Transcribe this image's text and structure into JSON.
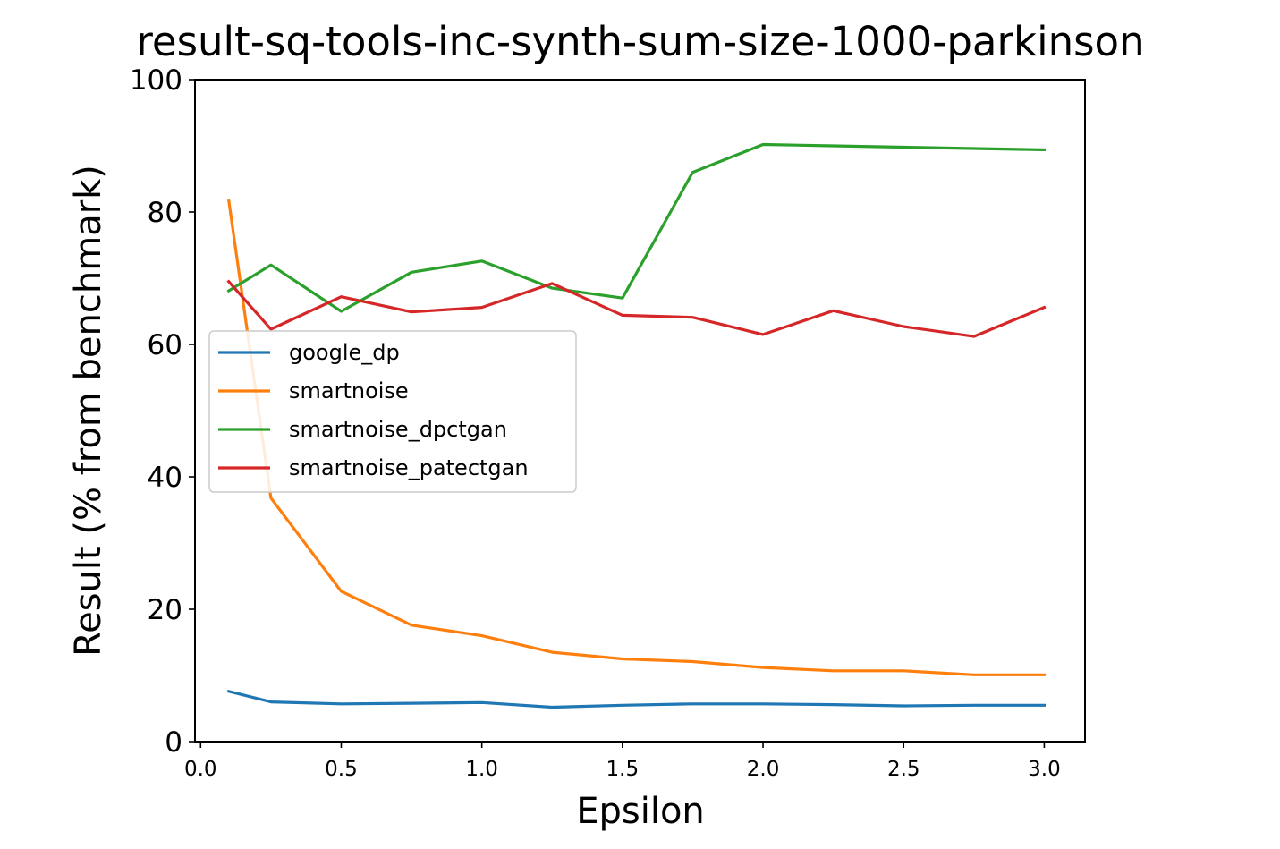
{
  "chart_data": {
    "type": "line",
    "title": "result-sq-tools-inc-synth-sum-size-1000-parkinson",
    "xlabel": "Epsilon",
    "ylabel": "Result (% from benchmark)",
    "xlim": [
      -0.02,
      3.145
    ],
    "ylim": [
      0,
      100
    ],
    "xticks": [
      0.0,
      0.5,
      1.0,
      1.5,
      2.0,
      2.5,
      3.0
    ],
    "xtick_labels": [
      "0.0",
      "0.5",
      "1.0",
      "1.5",
      "2.0",
      "2.5",
      "3.0"
    ],
    "yticks": [
      0,
      20,
      40,
      60,
      80,
      100
    ],
    "ytick_labels": [
      "0",
      "20",
      "40",
      "60",
      "80",
      "100"
    ],
    "grid": false,
    "legend_position": "center-left",
    "x": [
      0.1,
      0.25,
      0.5,
      0.75,
      1.0,
      1.25,
      1.5,
      1.75,
      2.0,
      2.25,
      2.5,
      2.75,
      3.0
    ],
    "series": [
      {
        "name": "google_dp",
        "color": "#1f77b4",
        "values": [
          7.6,
          6.0,
          5.7,
          5.8,
          5.9,
          5.2,
          5.5,
          5.7,
          5.7,
          5.6,
          5.4,
          5.5,
          5.5
        ]
      },
      {
        "name": "smartnoise",
        "color": "#ff7f0e",
        "values": [
          81.8,
          36.8,
          22.7,
          17.6,
          16.0,
          13.5,
          12.5,
          12.1,
          11.2,
          10.7,
          10.7,
          10.1,
          10.1
        ]
      },
      {
        "name": "smartnoise_dpctgan",
        "color": "#2ca02c",
        "values": [
          68.1,
          72.0,
          65.0,
          70.9,
          72.6,
          68.5,
          67.0,
          86.0,
          90.2,
          90.0,
          89.8,
          89.6,
          89.4
        ]
      },
      {
        "name": "smartnoise_patectgan",
        "color": "#d62728",
        "values": [
          69.5,
          62.3,
          67.2,
          64.9,
          65.6,
          69.2,
          64.4,
          64.1,
          61.5,
          65.1,
          62.7,
          61.2,
          65.6
        ]
      }
    ]
  }
}
